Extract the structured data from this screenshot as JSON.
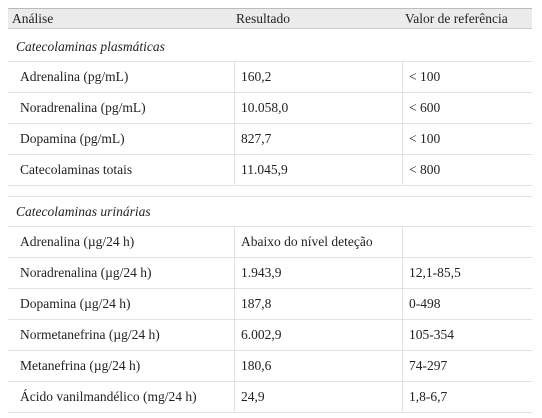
{
  "table": {
    "header": [
      "Análise",
      "Resultado",
      "Valor de referência"
    ],
    "sections": [
      {
        "title": "Catecolaminas plasmáticas",
        "rows": [
          [
            "Adrenalina (pg/mL)",
            "160,2",
            "< 100"
          ],
          [
            "Noradrenalina (pg/mL)",
            "10.058,0",
            "< 600"
          ],
          [
            "Dopamina (pg/mL)",
            "827,7",
            "< 100"
          ],
          [
            "Catecolaminas totais",
            "11.045,9",
            "< 800"
          ]
        ]
      },
      {
        "title": "Catecolaminas urinárias",
        "rows": [
          [
            "Adrenalina (µg/24 h)",
            "Abaixo do nível deteção",
            null
          ],
          [
            "Noradrenalina (µg/24 h)",
            "1.943,9",
            "12,1-85,5"
          ],
          [
            "Dopamina (µg/24 h)",
            "187,8",
            "0-498"
          ],
          [
            "Normetanefrina (µg/24 h)",
            "6.002,9",
            "105-354"
          ],
          [
            "Metanefrina (µg/24 h)",
            "180,6",
            "74-297"
          ],
          [
            "Ácido vanilmandélico (mg/24 h)",
            "24,9",
            "1,8-6,7"
          ]
        ]
      }
    ]
  }
}
